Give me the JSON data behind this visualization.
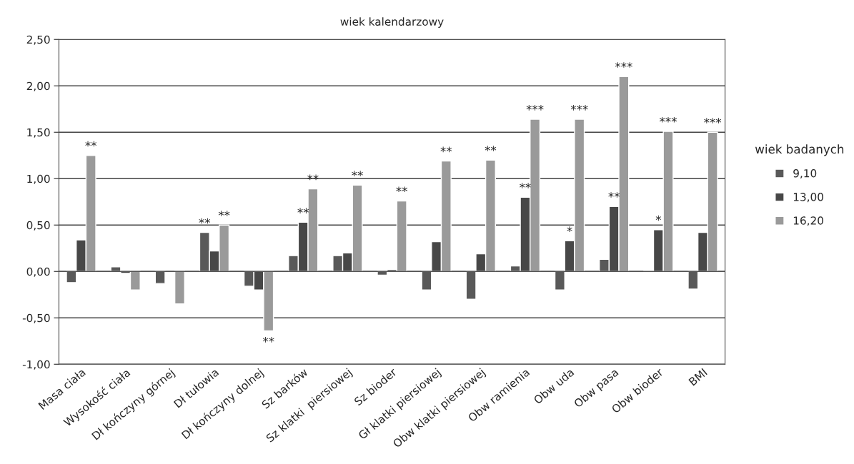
{
  "chart_data": {
    "type": "bar",
    "title": "wiek kalendarzowy",
    "categories": [
      "Masa ciała",
      "Wysokość ciała",
      "Dł kończyny górnej",
      "Dł tułowia",
      "Dł kończyny dolnej",
      "Sz barków",
      "Sz klatki  piersiowej",
      "Sz bioder",
      "Gł klatki piersiowej",
      "Obw klatki piersiowej",
      "Obw ramienia",
      "Obw uda",
      "Obw pasa",
      "Obw bioder",
      "BMI"
    ],
    "series": [
      {
        "name": "9,10",
        "color": "#595959",
        "values": [
          -0.12,
          0.05,
          -0.13,
          0.42,
          -0.16,
          0.17,
          0.17,
          -0.04,
          -0.2,
          -0.3,
          0.06,
          -0.2,
          0.13,
          0.01,
          -0.19
        ]
      },
      {
        "name": "13,00",
        "color": "#474747",
        "values": [
          0.34,
          -0.02,
          null,
          0.22,
          -0.2,
          0.53,
          0.2,
          0.02,
          0.32,
          0.19,
          0.8,
          0.33,
          0.7,
          0.45,
          0.42
        ]
      },
      {
        "name": "16,20",
        "color": "#9a9a9a",
        "values": [
          1.25,
          -0.2,
          -0.35,
          0.5,
          -0.64,
          0.89,
          0.93,
          0.76,
          1.19,
          1.2,
          1.64,
          1.64,
          2.1,
          1.51,
          1.5
        ]
      }
    ],
    "legend_title": "wiek badanych",
    "legend": "right",
    "grid": "y",
    "ylim": [
      -1.0,
      2.5
    ],
    "yticks": [
      {
        "value": -1.0,
        "label": "-1,00"
      },
      {
        "value": -0.5,
        "label": "-0,50"
      },
      {
        "value": 0,
        "label": "0,00"
      },
      {
        "value": 0.5,
        "label": "0,50"
      },
      {
        "value": 1.0,
        "label": "1,00"
      },
      {
        "value": 1.5,
        "label": "1,50"
      },
      {
        "value": 2.0,
        "label": "2,00"
      },
      {
        "value": 2.5,
        "label": "2,50"
      }
    ],
    "annotations": [
      {
        "text": "**",
        "x": "Masa ciała",
        "y": 1.25
      },
      {
        "text": "**",
        "x": "Dł tułowia",
        "y": 0.42
      },
      {
        "text": "**",
        "x": "Dł tułowia",
        "y": 0.5
      },
      {
        "text": "**",
        "x": "Dł kończyny dolnej",
        "y": -0.64
      },
      {
        "text": "**",
        "x": "Sz barków",
        "y": 0.53
      },
      {
        "text": "**",
        "x": "Sz barków",
        "y": 0.89
      },
      {
        "text": "**",
        "x": "Sz klatki  piersiowej",
        "y": 0.93
      },
      {
        "text": "**",
        "x": "Sz bioder",
        "y": 0.76
      },
      {
        "text": "**",
        "x": "Gł klatki piersiowej",
        "y": 1.19
      },
      {
        "text": "**",
        "x": "Obw klatki piersiowej",
        "y": 1.2
      },
      {
        "text": "**",
        "x": "Obw ramienia",
        "y": 0.8
      },
      {
        "text": "***",
        "x": "Obw ramienia",
        "y": 1.64
      },
      {
        "text": "*",
        "x": "Obw uda",
        "y": 0.33
      },
      {
        "text": "***",
        "x": "Obw uda",
        "y": 1.64
      },
      {
        "text": "**",
        "x": "Obw pasa",
        "y": 0.7
      },
      {
        "text": "***",
        "x": "Obw pasa",
        "y": 2.1
      },
      {
        "text": "*",
        "x": "Obw bioder",
        "y": 0.45
      },
      {
        "text": "***",
        "x": "Obw bioder",
        "y": 1.51
      },
      {
        "text": "***",
        "x": "BMI",
        "y": 1.5
      }
    ]
  }
}
